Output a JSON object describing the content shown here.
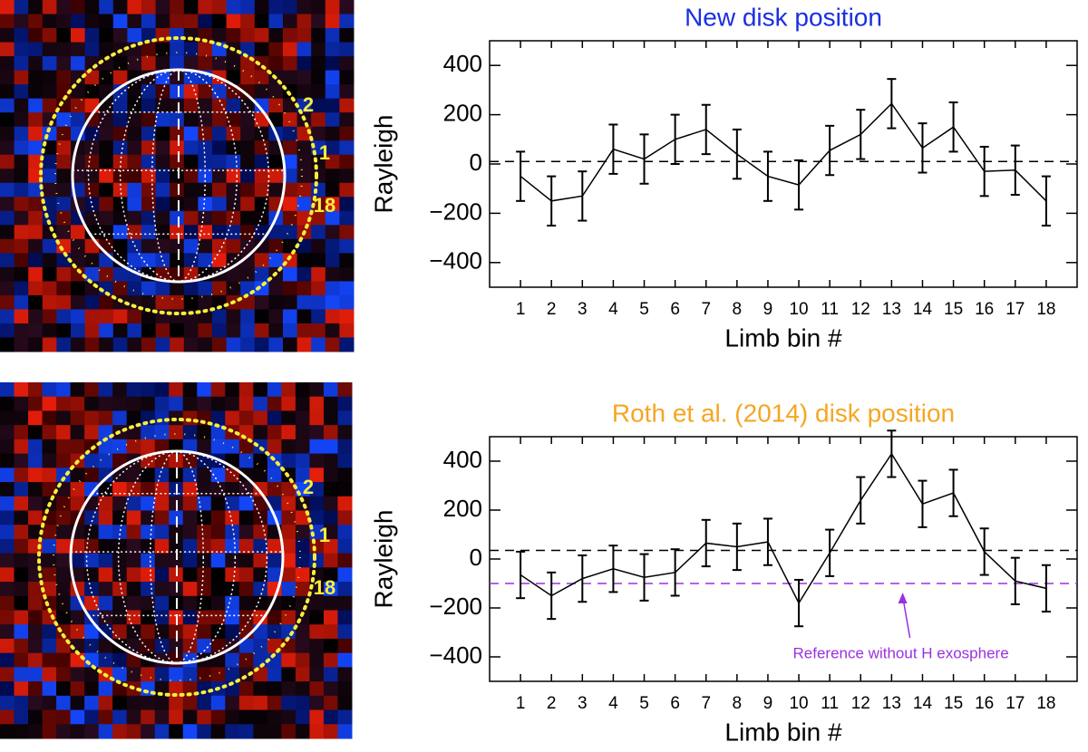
{
  "chart_data": [
    {
      "type": "line",
      "title": "New disk position",
      "title_color": "#1a2fe0",
      "xlabel": "Limb bin #",
      "ylabel": "Rayleigh",
      "color": "#000000",
      "x": [
        1,
        2,
        3,
        4,
        5,
        6,
        7,
        8,
        9,
        10,
        11,
        12,
        13,
        14,
        15,
        16,
        17,
        18
      ],
      "values": [
        -50,
        -150,
        -130,
        60,
        20,
        100,
        140,
        40,
        -50,
        -85,
        55,
        120,
        245,
        65,
        150,
        -30,
        -25,
        -150
      ],
      "errors": [
        100,
        100,
        100,
        100,
        100,
        100,
        100,
        100,
        100,
        100,
        100,
        100,
        100,
        100,
        100,
        100,
        100,
        100
      ],
      "xlim": [
        0,
        19
      ],
      "xticks": [
        1,
        2,
        3,
        4,
        5,
        6,
        7,
        8,
        9,
        10,
        11,
        12,
        13,
        14,
        15,
        16,
        17,
        18
      ],
      "ylim": [
        -500,
        500
      ],
      "yticks": [
        {
          "value": -400,
          "label": "−400"
        },
        {
          "value": -200,
          "label": "−200"
        },
        0,
        200,
        400
      ],
      "hlines": [
        {
          "value": 10,
          "color": "#000000"
        }
      ]
    },
    {
      "type": "line",
      "title": "Roth et al. (2014) disk position",
      "title_color": "#f5a623",
      "xlabel": "Limb bin #",
      "ylabel": "Rayleigh",
      "color": "#000000",
      "x": [
        1,
        2,
        3,
        4,
        5,
        6,
        7,
        8,
        9,
        10,
        11,
        12,
        13,
        14,
        15,
        16,
        17,
        18
      ],
      "values": [
        -65,
        -150,
        -80,
        -40,
        -75,
        -55,
        65,
        50,
        70,
        -180,
        25,
        240,
        430,
        225,
        270,
        30,
        -90,
        -120
      ],
      "errors": [
        95,
        95,
        95,
        95,
        95,
        95,
        95,
        95,
        95,
        95,
        95,
        95,
        95,
        95,
        95,
        95,
        95,
        95
      ],
      "xlim": [
        0,
        19
      ],
      "xticks": [
        1,
        2,
        3,
        4,
        5,
        6,
        7,
        8,
        9,
        10,
        11,
        12,
        13,
        14,
        15,
        16,
        17,
        18
      ],
      "ylim": [
        -500,
        500
      ],
      "yticks": [
        {
          "value": -400,
          "label": "−400"
        },
        {
          "value": -200,
          "label": "−200"
        },
        0,
        200,
        400
      ],
      "hlines": [
        {
          "value": 35,
          "color": "#000000"
        },
        {
          "value": -100,
          "color": "#9b30e0",
          "annotation": "Reference without H exosphere"
        }
      ]
    }
  ],
  "images": [
    {
      "labels": [
        "2",
        "1",
        "18"
      ]
    },
    {
      "labels": [
        "2",
        "1",
        "18"
      ]
    }
  ]
}
